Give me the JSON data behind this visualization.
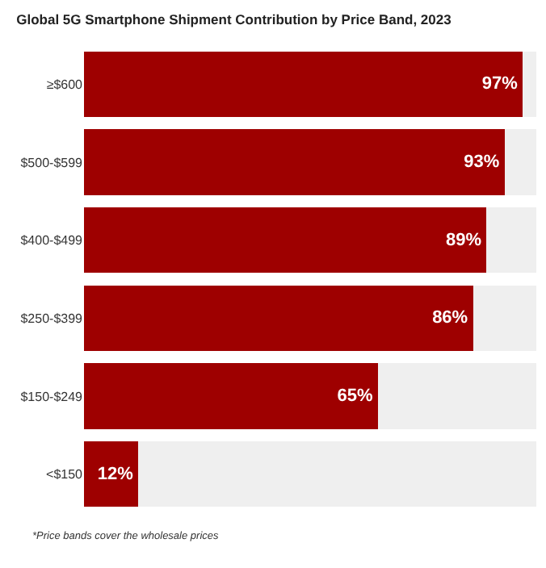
{
  "chart_data": {
    "type": "bar",
    "orientation": "horizontal",
    "stacked": true,
    "title": "Global 5G Smartphone Shipment Contribution by Price Band, 2023",
    "categories": [
      "≥$600",
      "$500-$599",
      "$400-$499",
      "$250-$399",
      "$150-$249",
      "<$150"
    ],
    "series": [
      {
        "color": "#9e0000",
        "values": [
          97,
          93,
          89,
          86,
          65,
          12
        ],
        "value_labels": [
          "97%",
          "93%",
          "89%",
          "86%",
          "65%",
          "12%"
        ]
      },
      {
        "color": "#efefef",
        "values": [
          3,
          7,
          11,
          14,
          35,
          88
        ]
      }
    ],
    "xlim": [
      0,
      100
    ],
    "tick_labels": "y",
    "annotations": [
      "*Price bands cover the wholesale prices"
    ]
  }
}
